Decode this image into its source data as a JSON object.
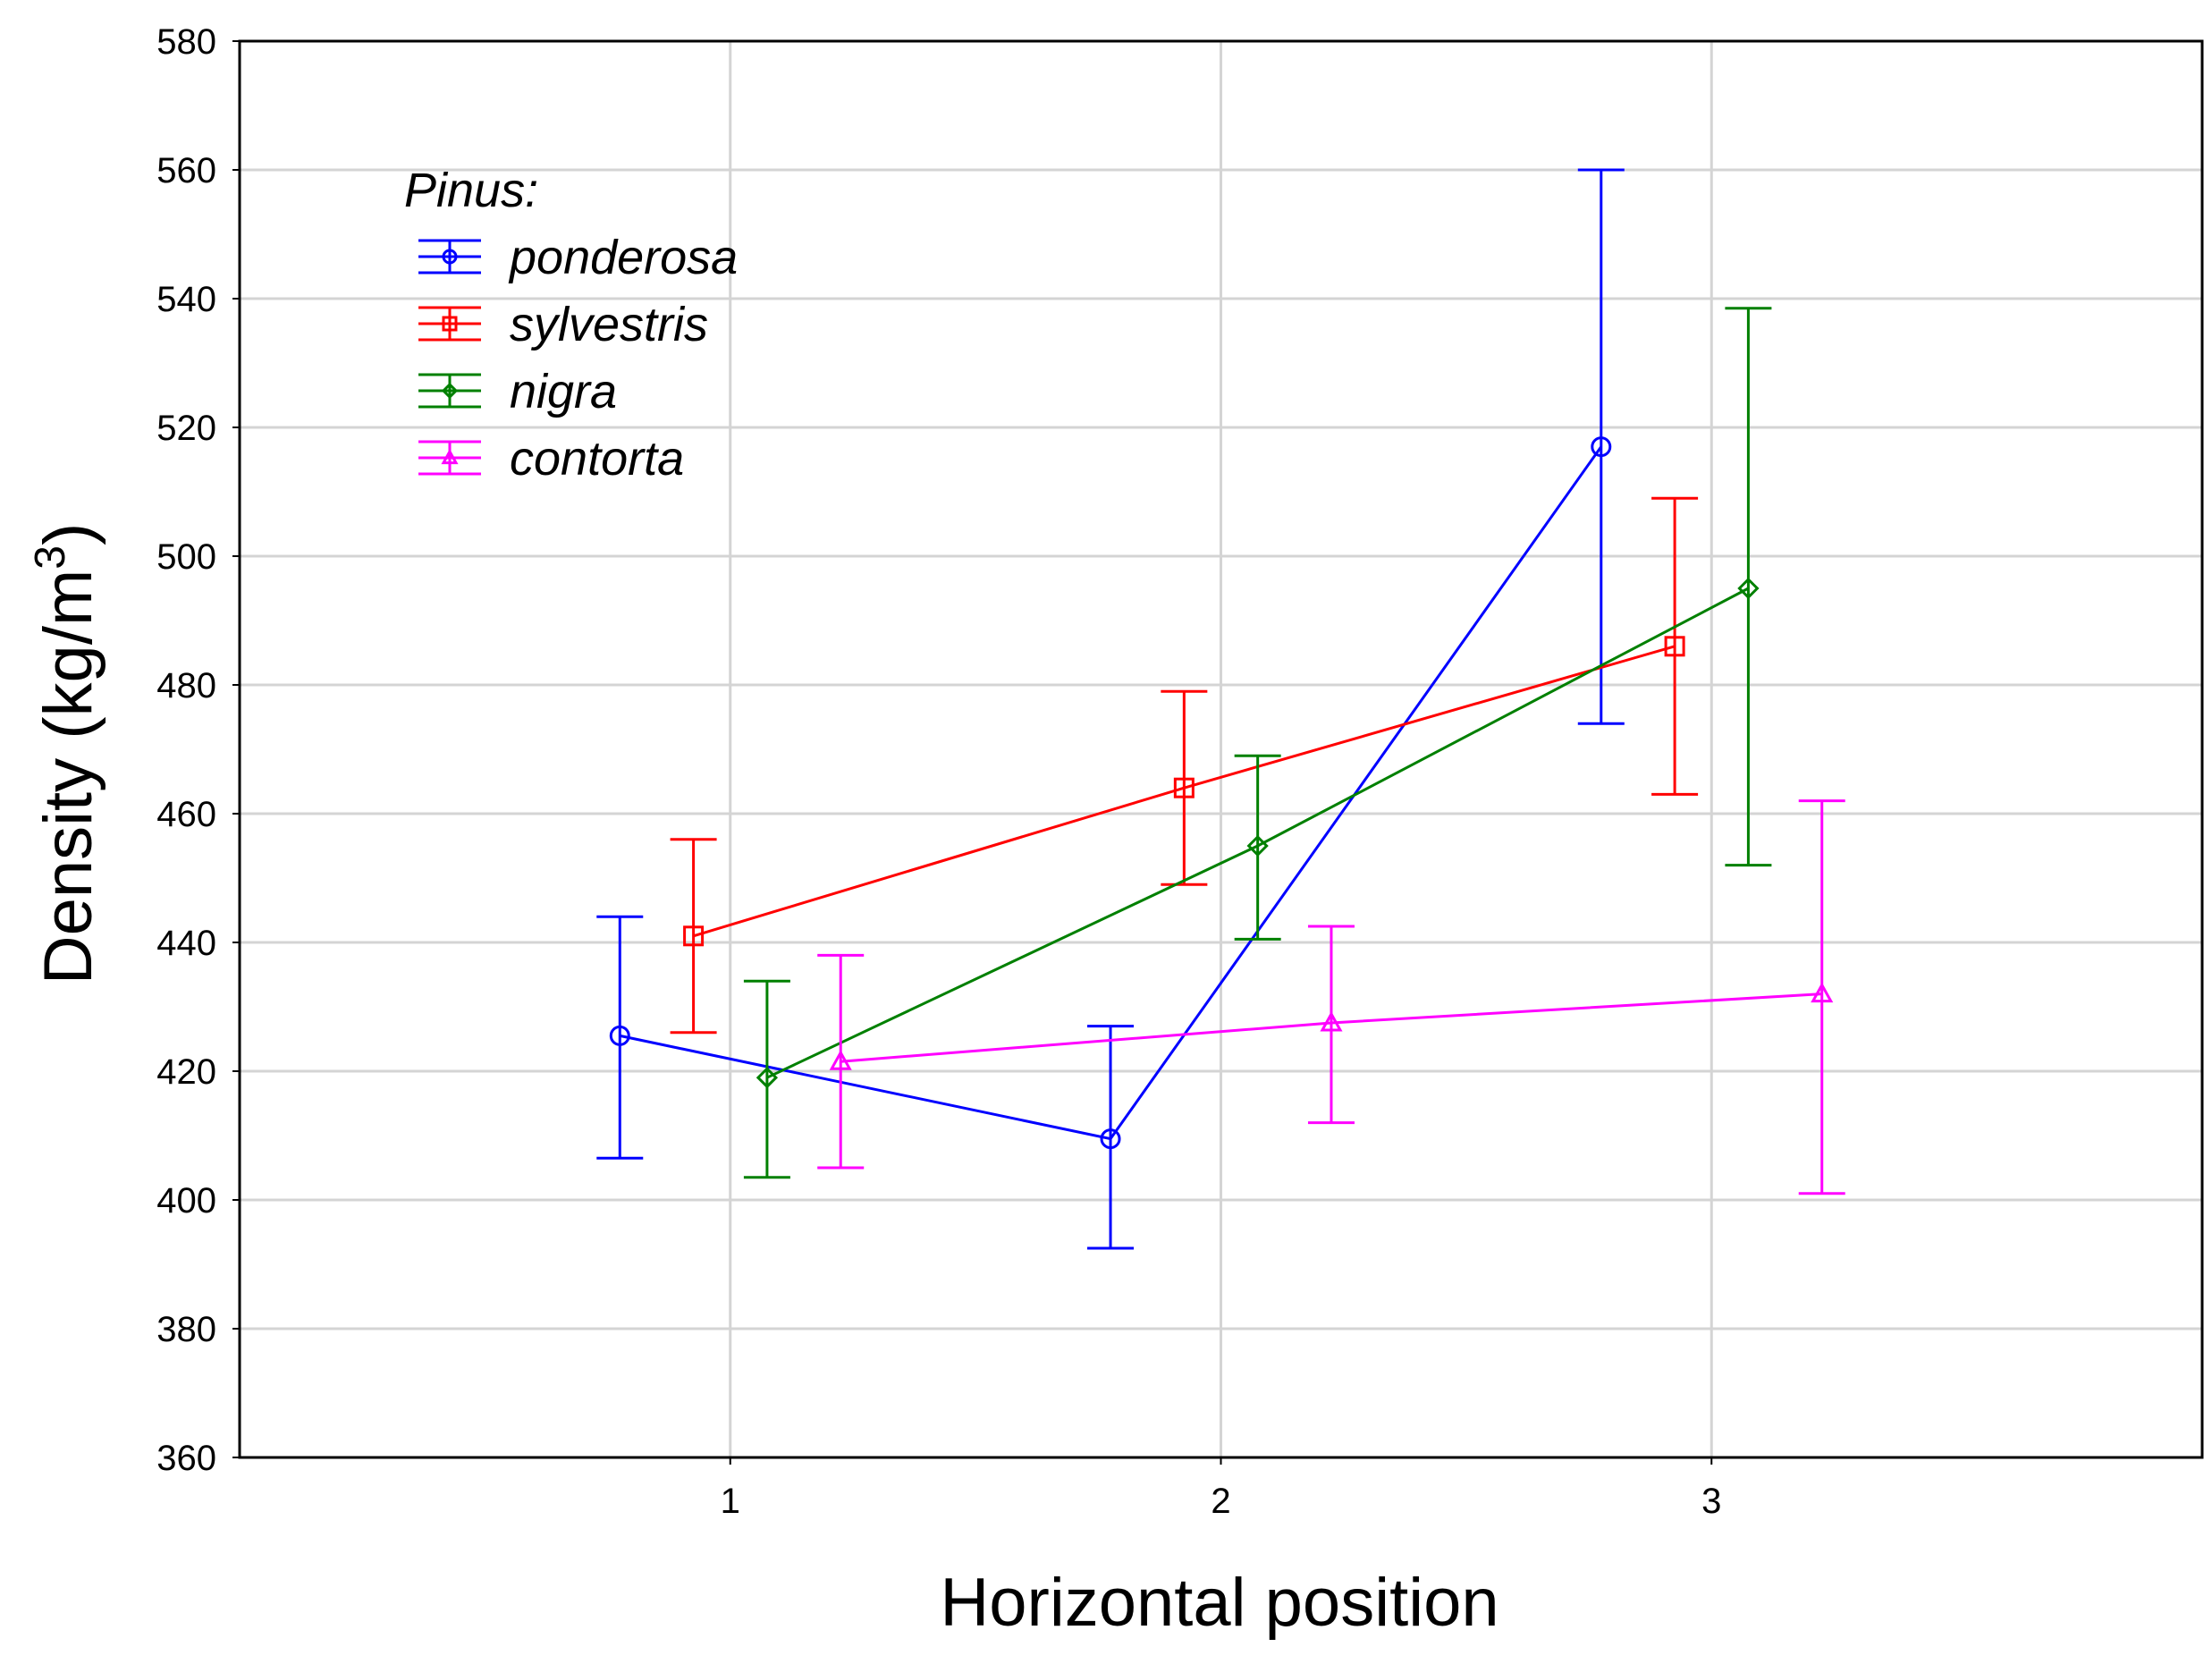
{
  "chart_data": {
    "type": "line",
    "title": "",
    "xlabel": "Horizontal position",
    "ylabel": "Density (kg/m",
    "ylabel_superscript": "3",
    "ylabel_close": ")",
    "xlim": [
      0,
      4
    ],
    "ylim": [
      360,
      580
    ],
    "xticks": [
      1,
      2,
      3
    ],
    "yticks": [
      360,
      380,
      400,
      420,
      440,
      460,
      480,
      500,
      520,
      540,
      560,
      580
    ],
    "grid": true,
    "legend": {
      "title": "Pinus:",
      "placement": "top-left"
    },
    "series": [
      {
        "name": "ponderosa",
        "color": "#0000ff",
        "marker": "circle",
        "offset": -0.225,
        "x": [
          1,
          2,
          3
        ],
        "y": [
          425.5,
          409.5,
          517
        ],
        "lower": [
          406.5,
          392.5,
          474
        ],
        "upper": [
          444,
          427,
          560
        ]
      },
      {
        "name": "sylvestris",
        "color": "#ff0000",
        "marker": "square",
        "offset": -0.075,
        "x": [
          1,
          2,
          3
        ],
        "y": [
          441,
          464,
          486
        ],
        "lower": [
          426,
          449,
          463
        ],
        "upper": [
          456,
          479,
          509
        ]
      },
      {
        "name": "nigra",
        "color": "#008000",
        "marker": "diamond",
        "offset": 0.075,
        "x": [
          1,
          2,
          3
        ],
        "y": [
          419,
          455,
          495
        ],
        "lower": [
          403.5,
          440.5,
          452
        ],
        "upper": [
          434,
          469,
          538.5
        ]
      },
      {
        "name": "contorta",
        "color": "#ff00ff",
        "marker": "triangle",
        "offset": 0.225,
        "x": [
          1,
          2,
          3
        ],
        "y": [
          421.5,
          427.5,
          432
        ],
        "lower": [
          405,
          412,
          401
        ],
        "upper": [
          438,
          442.5,
          462
        ]
      }
    ]
  }
}
